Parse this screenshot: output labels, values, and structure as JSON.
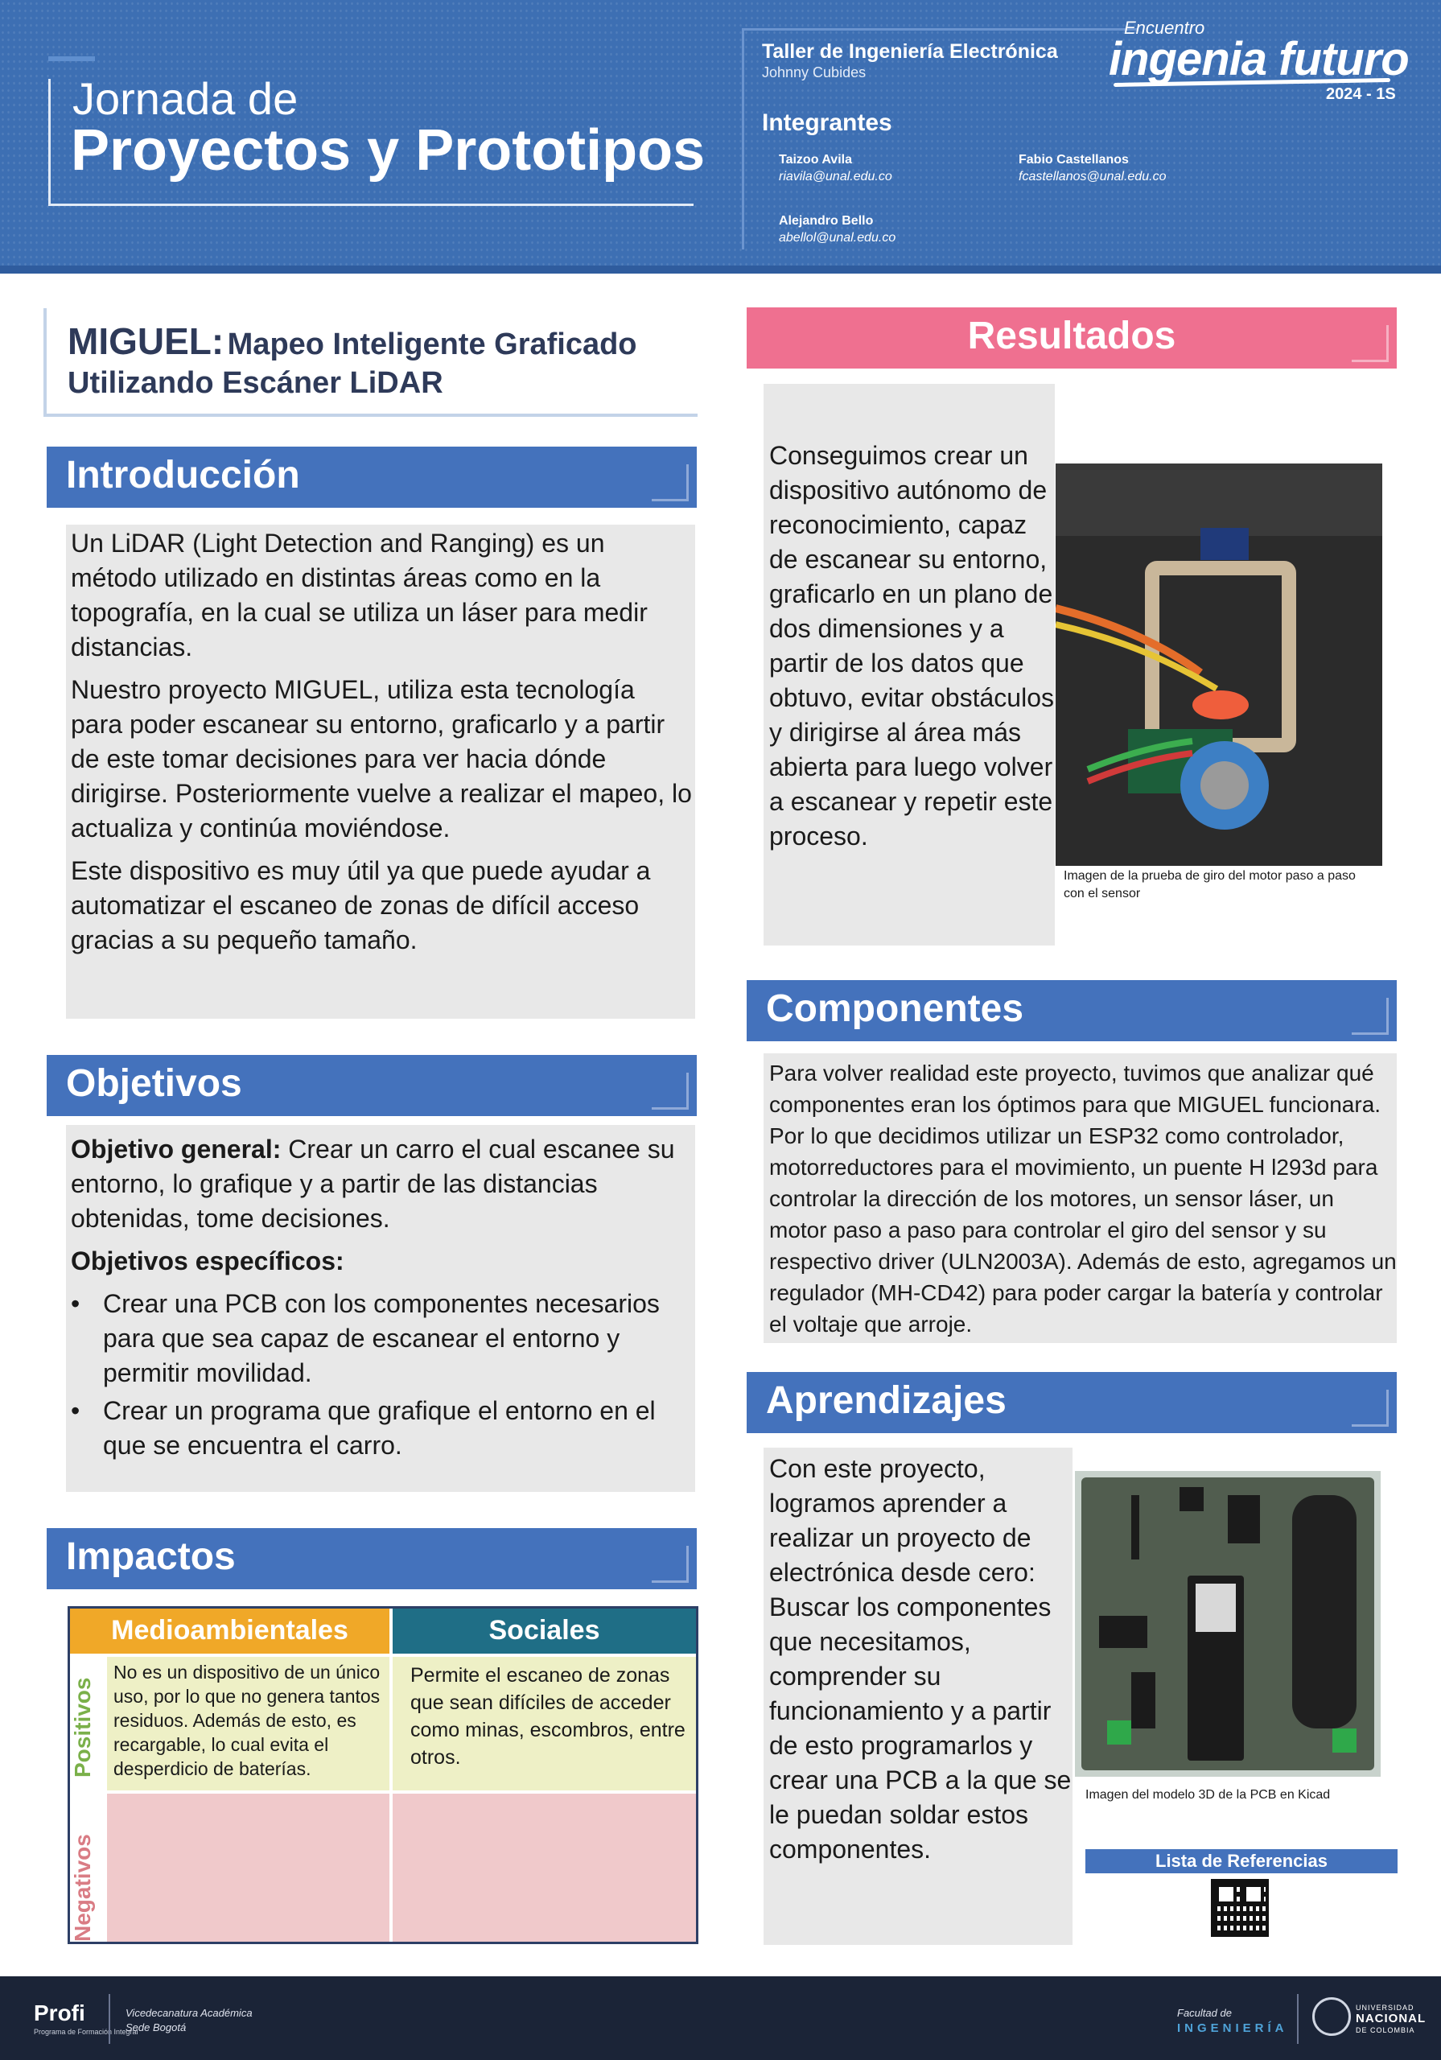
{
  "header": {
    "title_line1": "Jornada de",
    "title_line2": "Proyectos y Prototipos",
    "workshop": "Taller de Ingeniería Electrónica",
    "teacher": "Johnny Cubides",
    "members_heading": "Integrantes",
    "members": [
      {
        "name": "Taizoo Avila",
        "email": "riavila@unal.edu.co"
      },
      {
        "name": "Fabio Castellanos",
        "email": "fcastellanos@unal.edu.co"
      },
      {
        "name": "Alejandro Bello",
        "email": "abellol@unal.edu.co"
      }
    ],
    "logo_small": "Encuentro",
    "logo_main": "ingenia futuro",
    "logo_year": "2024 - 1S"
  },
  "project": {
    "acronym": "MIGUEL:",
    "title_rest": "Mapeo Inteligente Graficado",
    "title_line2": "Utilizando Escáner LiDAR"
  },
  "intro": {
    "heading": "Introducción",
    "p1": "Un LiDAR (Light Detection and Ranging) es un método utilizado en distintas áreas como en la topografía, en la cual se utiliza un láser para medir distancias.",
    "p2": "Nuestro proyecto MIGUEL, utiliza esta tecnología para poder escanear su entorno, graficarlo y a partir de este tomar decisiones para ver hacia dónde dirigirse. Posteriormente vuelve a realizar el mapeo, lo actualiza y continúa moviéndose.",
    "p3": "Este dispositivo es muy útil ya que puede ayudar a automatizar el escaneo de zonas de difícil acceso gracias a su pequeño tamaño."
  },
  "objectives": {
    "heading": "Objetivos",
    "general_label": "Objetivo general:",
    "general_text": "Crear un carro el cual escanee su entorno, lo grafique y a partir de las distancias obtenidas, tome decisiones.",
    "specific_label": "Objetivos específicos:",
    "specific": [
      "Crear una PCB con los componentes necesarios para que sea capaz de escanear el entorno y permitir movilidad.",
      "Crear un programa que grafique el entorno en el que se encuentra el carro."
    ],
    "bullet": "•"
  },
  "impacts": {
    "heading": "Impactos",
    "col_env": "Medioambientales",
    "col_soc": "Sociales",
    "row_pos": "Positivos",
    "row_neg": "Negativos",
    "pos_env": "No es un dispositivo de un único uso, por lo que no genera tantos residuos. Además de esto, es recargable, lo cual evita el desperdicio de baterías.",
    "pos_soc": "Permite el escaneo de zonas que sean difíciles de acceder como minas, escombros, entre otros."
  },
  "results": {
    "heading": "Resultados",
    "text": "Conseguimos crear un dispositivo autónomo de reconocimiento, capaz de escanear su entorno, graficarlo en un plano de dos dimensiones y a partir de los datos que obtuvo, evitar obstáculos y dirigirse al área más abierta para luego volver a escanear y repetir este proceso.",
    "caption": "Imagen de la prueba de giro del motor paso a paso con el sensor"
  },
  "components": {
    "heading": "Componentes",
    "text": "Para volver realidad este proyecto, tuvimos que analizar qué componentes eran los óptimos para que MIGUEL funcionara. Por lo que decidimos utilizar un ESP32 como controlador, motorreductores para el movimiento, un puente H l293d para controlar la dirección de los motores, un sensor láser, un motor paso a paso para controlar el giro del sensor y su respectivo driver (ULN2003A). Además de esto, agregamos un regulador (MH-CD42) para poder cargar la batería y controlar el voltaje que arroje."
  },
  "learnings": {
    "heading": "Aprendizajes",
    "text": "Con este proyecto, logramos aprender a realizar un proyecto de electrónica desde cero: Buscar los componentes que necesitamos, comprender su funcionamiento y a partir de esto programarlos y crear una PCB a la que se le puedan soldar estos componentes.",
    "caption": "Imagen del modelo 3D de la PCB en Kicad",
    "references": "Lista de Referencias"
  },
  "footer": {
    "profi": "Profi",
    "profi_sub": "Programa de Formación Integral",
    "vice_line1": "Vicedecanatura Académica",
    "vice_line2": "Sede Bogotá",
    "faculty_line1": "Facultad de",
    "faculty_line2": "INGENIERÍA",
    "unal_line1": "UNIVERSIDAD",
    "unal_line2": "NACIONAL",
    "unal_line3": "DE COLOMBIA"
  },
  "colors": {
    "header_blue": "#3d6fb3",
    "section_blue": "#4472bc",
    "results_pink": "#ef7090",
    "impact_orange": "#f0a828",
    "impact_teal": "#1f6e86",
    "footer_navy": "#1b2437"
  }
}
